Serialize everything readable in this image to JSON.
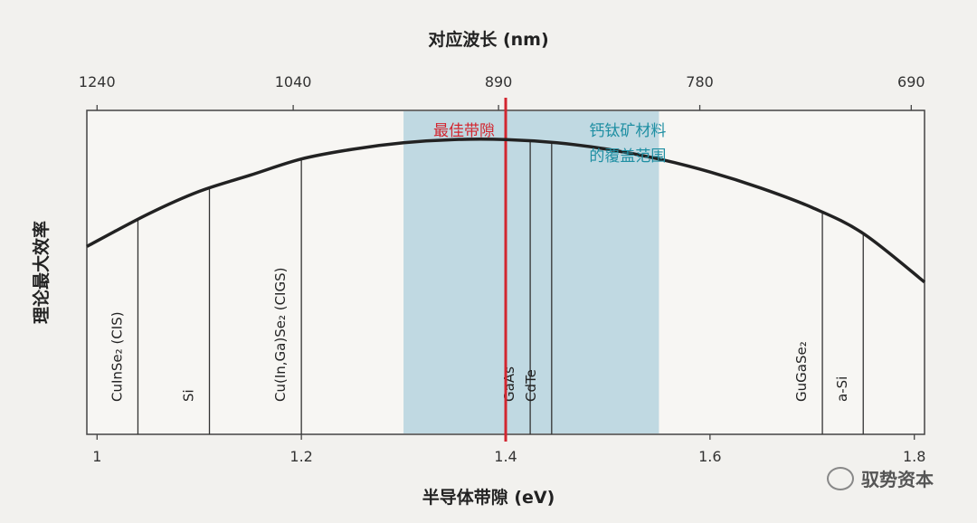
{
  "chart_data": {
    "type": "line",
    "x_axis": {
      "label": "半导体带隙 (eV)",
      "range": [
        0.99,
        1.81
      ],
      "ticks": [
        1,
        1.2,
        1.4,
        1.6,
        1.8
      ],
      "tick_labels": [
        "1",
        "1.2",
        "1.4",
        "1.6",
        "1.8"
      ]
    },
    "top_axis": {
      "label": "对应波长 (nm)",
      "ticks": [
        {
          "ev": 1.0,
          "label": "1240"
        },
        {
          "ev": 1.192,
          "label": "1040"
        },
        {
          "ev": 1.393,
          "label": "890"
        },
        {
          "ev": 1.59,
          "label": "780"
        },
        {
          "ev": 1.797,
          "label": "690"
        }
      ]
    },
    "y_axis": {
      "label": "理论最大效率",
      "range": [
        0,
        1
      ]
    },
    "curve": {
      "x": [
        0.99,
        1.05,
        1.1,
        1.15,
        1.2,
        1.25,
        1.3,
        1.35,
        1.4,
        1.45,
        1.5,
        1.55,
        1.6,
        1.65,
        1.7,
        1.75,
        1.81
      ],
      "y": [
        0.58,
        0.68,
        0.75,
        0.8,
        0.85,
        0.88,
        0.9,
        0.91,
        0.91,
        0.9,
        0.88,
        0.85,
        0.81,
        0.76,
        0.7,
        0.62,
        0.47
      ]
    },
    "shaded_region": {
      "label": "钙钛矿材料的覆盖范围",
      "label_line1": "钙钛矿材料",
      "label_line2": "的覆盖范围",
      "x_start": 1.3,
      "x_end": 1.55,
      "color": "#b6d4de"
    },
    "optimal_line": {
      "label": "最佳带隙",
      "x": 1.4,
      "color": "#d22630"
    },
    "materials": [
      {
        "label": "CuInSe₂ (CIS)",
        "x": 1.04
      },
      {
        "label": "Si",
        "x": 1.11
      },
      {
        "label": "Cu(In,Ga)Se₂ (CIGS)",
        "x": 1.2
      },
      {
        "label": "GaAs",
        "x": 1.424
      },
      {
        "label": "CdTe",
        "x": 1.445
      },
      {
        "label": "GuGaSe₂",
        "x": 1.71
      },
      {
        "label": "a-Si",
        "x": 1.75
      }
    ],
    "grid": false
  },
  "watermark": {
    "text": "驭势资本",
    "icon": "wechat-icon"
  }
}
